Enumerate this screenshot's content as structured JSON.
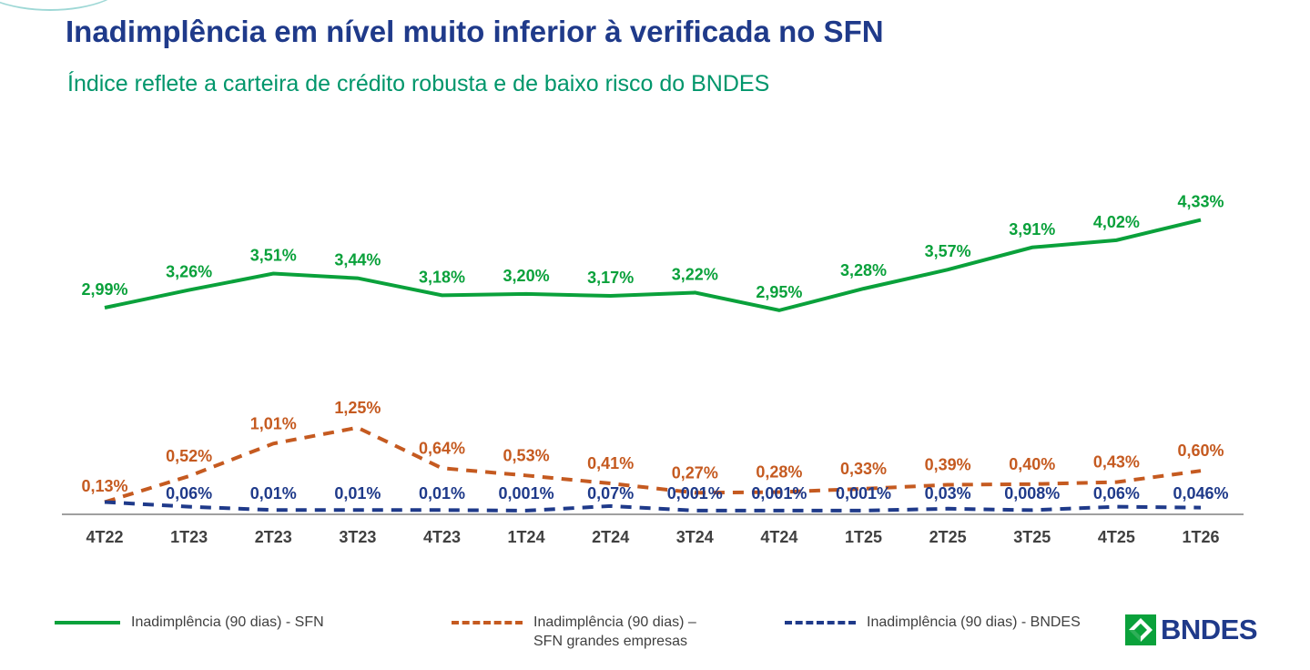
{
  "header": {
    "title": "Inadimplência em nível muito inferior à verificada no SFN",
    "subtitle": "Índice reflete a carteira de crédito robusta e de baixo risco do BNDES"
  },
  "colors": {
    "sfn": "#0aa13b",
    "sfn_grandes": "#c55a20",
    "bndes": "#1f3a8a",
    "title": "#1f3a8a",
    "subtitle": "#00966b"
  },
  "chart_data": {
    "type": "line",
    "categories": [
      "4T22",
      "1T23",
      "2T23",
      "3T23",
      "4T23",
      "1T24",
      "2T24",
      "3T24",
      "4T24",
      "1T25",
      "2T25",
      "3T25",
      "4T25",
      "1T26"
    ],
    "series": [
      {
        "name": "Inadimplência (90 dias) - SFN",
        "style": "solid",
        "color": "#0aa13b",
        "values": [
          2.99,
          3.26,
          3.51,
          3.44,
          3.18,
          3.2,
          3.17,
          3.22,
          2.95,
          3.28,
          3.57,
          3.91,
          4.02,
          4.33
        ],
        "labels": [
          "2,99%",
          "3,26%",
          "3,51%",
          "3,44%",
          "3,18%",
          "3,20%",
          "3,17%",
          "3,22%",
          "2,95%",
          "3,28%",
          "3,57%",
          "3,91%",
          "4,02%",
          "4,33%"
        ]
      },
      {
        "name": "Inadimplência (90 dias) –\nSFN grandes empresas",
        "style": "dashed",
        "color": "#c55a20",
        "values": [
          0.13,
          0.52,
          1.01,
          1.25,
          0.64,
          0.53,
          0.41,
          0.27,
          0.28,
          0.33,
          0.39,
          0.4,
          0.43,
          0.6
        ],
        "labels": [
          "0,13%",
          "0,52%",
          "1,01%",
          "1,25%",
          "0,64%",
          "0,53%",
          "0,41%",
          "0,27%",
          "0,28%",
          "0,33%",
          "0,39%",
          "0,40%",
          "0,43%",
          "0,60%"
        ]
      },
      {
        "name": "Inadimplência (90 dias) - BNDES",
        "style": "dashed",
        "color": "#1f3a8a",
        "values": [
          0.13,
          0.06,
          0.01,
          0.01,
          0.01,
          0.001,
          0.07,
          0.001,
          0.001,
          0.001,
          0.03,
          0.008,
          0.06,
          0.046
        ],
        "labels": [
          "",
          "0,06%",
          "0,01%",
          "0,01%",
          "0,01%",
          "0,001%",
          "0,07%",
          "0,001%",
          "0,001%",
          "0,001%",
          "0,03%",
          "0,008%",
          "0,06%",
          "0,046%"
        ]
      }
    ],
    "ylim": [
      0,
      4.5
    ],
    "grid": false,
    "legend_position": "bottom"
  },
  "logo": {
    "text": "BNDES"
  }
}
